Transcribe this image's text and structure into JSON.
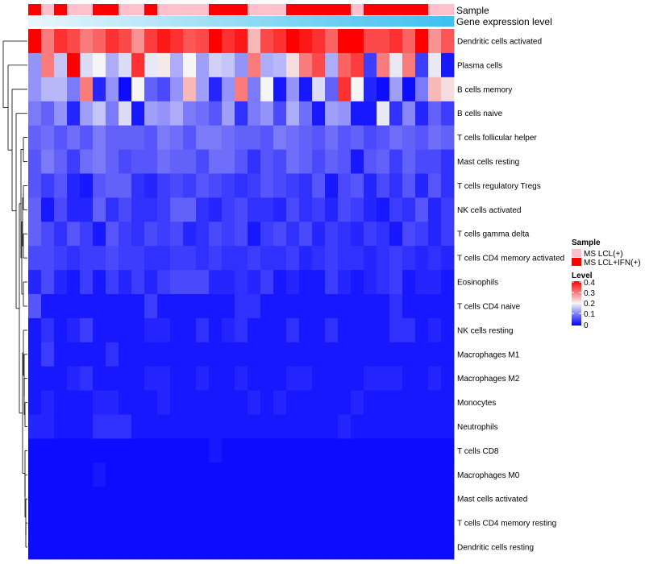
{
  "chart_data": {
    "type": "heatmap",
    "annotation_labels": {
      "sample": "Sample",
      "gene_expression": "Gene expression level"
    },
    "legend_sample": {
      "title": "Sample",
      "entries": [
        {
          "label": "MS LCL(+)",
          "color": "#ffc0cb"
        },
        {
          "label": "MS LCL+IFN(+)",
          "color": "#ff0000"
        }
      ]
    },
    "legend_level": {
      "title": "Level",
      "ticks": [
        "0.4",
        "0.3",
        "0.2",
        "0.1",
        "0"
      ],
      "range": [
        0,
        0.4
      ],
      "colors": {
        "low": "#0000ff",
        "mid": "#f5f5f5",
        "high": "#ff0000"
      }
    },
    "colors": {
      "pink": "#ffc0cb",
      "red": "#ff0000",
      "expr_low": "#e6f6fc",
      "expr_high": "#40c0ee",
      "dendro": "#000000"
    },
    "sample_groups": [
      "red",
      "pink",
      "red",
      "pink",
      "pink",
      "red",
      "red",
      "pink",
      "pink",
      "red",
      "pink",
      "pink",
      "pink",
      "pink",
      "red",
      "red",
      "red",
      "pink",
      "pink",
      "pink",
      "red",
      "red",
      "red",
      "red",
      "red",
      "pink",
      "red",
      "red",
      "red",
      "red",
      "red",
      "pink",
      "pink"
    ],
    "rows": [
      "Dendritic cells activated",
      "Plasma cells",
      "B cells memory",
      "B cells naive",
      "T cells follicular helper",
      "Mast cells resting",
      "T cells regulatory  Tregs",
      "NK cells activated",
      "T cells gamma delta",
      "T cells CD4 memory activated",
      "Eosinophils",
      "T cells CD4 naive",
      "NK cells resting",
      "Macrophages M1",
      "Macrophages M2",
      "Monocytes",
      "Neutrophils",
      "T cells CD8",
      "Macrophages M0",
      "Mast cells activated",
      "T cells CD4 memory resting",
      "Dendritic cells resting"
    ],
    "values": [
      [
        0.4,
        0.3,
        0.36,
        0.34,
        0.3,
        0.32,
        0.36,
        0.34,
        0.28,
        0.35,
        0.38,
        0.36,
        0.33,
        0.34,
        0.4,
        0.36,
        0.38,
        0.25,
        0.34,
        0.36,
        0.4,
        0.38,
        0.36,
        0.32,
        0.4,
        0.4,
        0.34,
        0.34,
        0.36,
        0.32,
        0.4,
        0.28,
        0.33
      ],
      [
        0.12,
        0.3,
        0.16,
        0.4,
        0.18,
        0.2,
        0.14,
        0.18,
        0.36,
        0.19,
        0.21,
        0.14,
        0.2,
        0.13,
        0.17,
        0.16,
        0.12,
        0.3,
        0.14,
        0.15,
        0.22,
        0.3,
        0.34,
        0.14,
        0.32,
        0.35,
        0.05,
        0.3,
        0.19,
        0.3,
        0.05,
        0.19,
        0.02
      ],
      [
        0.12,
        0.15,
        0.15,
        0.1,
        0.3,
        0.03,
        0.12,
        0.01,
        0.2,
        0.08,
        0.06,
        0.12,
        0.25,
        0.13,
        0.03,
        0.12,
        0.3,
        0.1,
        0.2,
        0.02,
        0.12,
        0.02,
        0.18,
        0.08,
        0.36,
        0.2,
        0.03,
        0.01,
        0.13,
        0.01,
        0.1,
        0.25,
        0.22
      ],
      [
        0.1,
        0.08,
        0.12,
        0.03,
        0.13,
        0.16,
        0.1,
        0.18,
        0.02,
        0.13,
        0.12,
        0.14,
        0.1,
        0.09,
        0.07,
        0.13,
        0.04,
        0.1,
        0.12,
        0.06,
        0.14,
        0.09,
        0.02,
        0.13,
        0.12,
        0.02,
        0.02,
        0.19,
        0.04,
        0.11,
        0.03,
        0.08,
        0.05
      ],
      [
        0.08,
        0.09,
        0.07,
        0.09,
        0.07,
        0.1,
        0.08,
        0.08,
        0.08,
        0.07,
        0.1,
        0.09,
        0.07,
        0.1,
        0.1,
        0.09,
        0.08,
        0.08,
        0.07,
        0.1,
        0.09,
        0.08,
        0.07,
        0.09,
        0.07,
        0.08,
        0.06,
        0.07,
        0.09,
        0.08,
        0.07,
        0.09,
        0.08
      ],
      [
        0.07,
        0.1,
        0.08,
        0.05,
        0.09,
        0.1,
        0.08,
        0.06,
        0.07,
        0.07,
        0.09,
        0.08,
        0.08,
        0.06,
        0.09,
        0.09,
        0.07,
        0.04,
        0.07,
        0.06,
        0.09,
        0.08,
        0.06,
        0.08,
        0.07,
        0.02,
        0.07,
        0.08,
        0.05,
        0.08,
        0.06,
        0.06,
        0.04
      ],
      [
        0.07,
        0.05,
        0.07,
        0.03,
        0.02,
        0.07,
        0.08,
        0.08,
        0.04,
        0.03,
        0.05,
        0.06,
        0.05,
        0.07,
        0.06,
        0.05,
        0.04,
        0.05,
        0.07,
        0.06,
        0.05,
        0.04,
        0.07,
        0.02,
        0.06,
        0.07,
        0.03,
        0.06,
        0.04,
        0.07,
        0.03,
        0.07,
        0.04
      ],
      [
        0.08,
        0.02,
        0.06,
        0.03,
        0.03,
        0.08,
        0.04,
        0.06,
        0.04,
        0.04,
        0.05,
        0.08,
        0.08,
        0.04,
        0.03,
        0.05,
        0.06,
        0.04,
        0.04,
        0.03,
        0.06,
        0.04,
        0.05,
        0.03,
        0.06,
        0.05,
        0.03,
        0.02,
        0.05,
        0.04,
        0.07,
        0.03,
        0.05
      ],
      [
        0.08,
        0.06,
        0.04,
        0.07,
        0.05,
        0.02,
        0.07,
        0.05,
        0.04,
        0.06,
        0.05,
        0.06,
        0.03,
        0.04,
        0.06,
        0.05,
        0.06,
        0.02,
        0.05,
        0.06,
        0.04,
        0.06,
        0.03,
        0.05,
        0.04,
        0.03,
        0.05,
        0.04,
        0.02,
        0.06,
        0.05,
        0.03,
        0.05
      ],
      [
        0.06,
        0.06,
        0.05,
        0.04,
        0.05,
        0.05,
        0.06,
        0.05,
        0.05,
        0.04,
        0.04,
        0.05,
        0.05,
        0.04,
        0.05,
        0.04,
        0.04,
        0.05,
        0.04,
        0.04,
        0.05,
        0.03,
        0.04,
        0.05,
        0.04,
        0.04,
        0.03,
        0.04,
        0.05,
        0.04,
        0.03,
        0.04,
        0.03
      ],
      [
        0.03,
        0.06,
        0.03,
        0.02,
        0.05,
        0.02,
        0.05,
        0.03,
        0.05,
        0.03,
        0.05,
        0.06,
        0.06,
        0.06,
        0.03,
        0.03,
        0.04,
        0.03,
        0.05,
        0.02,
        0.03,
        0.02,
        0.02,
        0.05,
        0.03,
        0.02,
        0.03,
        0.04,
        0.05,
        0.02,
        0.03,
        0.03,
        0.02
      ],
      [
        0.07,
        0.02,
        0.02,
        0.02,
        0.02,
        0.02,
        0.02,
        0.02,
        0.02,
        0.05,
        0.02,
        0.02,
        0.02,
        0.02,
        0.02,
        0.02,
        0.04,
        0.04,
        0.02,
        0.02,
        0.02,
        0.02,
        0.02,
        0.02,
        0.02,
        0.02,
        0.02,
        0.02,
        0.04,
        0.02,
        0.02,
        0.02,
        0.02
      ],
      [
        0.02,
        0.04,
        0.02,
        0.03,
        0.05,
        0.02,
        0.02,
        0.02,
        0.02,
        0.03,
        0.03,
        0.02,
        0.02,
        0.04,
        0.02,
        0.03,
        0.04,
        0.02,
        0.02,
        0.02,
        0.04,
        0.02,
        0.02,
        0.04,
        0.02,
        0.02,
        0.02,
        0.02,
        0.04,
        0.04,
        0.02,
        0.03,
        0.02
      ],
      [
        0.02,
        0.05,
        0.02,
        0.02,
        0.02,
        0.02,
        0.04,
        0.02,
        0.02,
        0.02,
        0.02,
        0.02,
        0.02,
        0.02,
        0.02,
        0.02,
        0.02,
        0.02,
        0.02,
        0.02,
        0.02,
        0.02,
        0.02,
        0.02,
        0.02,
        0.02,
        0.02,
        0.02,
        0.02,
        0.02,
        0.02,
        0.02,
        0.02
      ],
      [
        0.02,
        0.02,
        0.02,
        0.03,
        0.04,
        0.02,
        0.02,
        0.02,
        0.02,
        0.03,
        0.03,
        0.02,
        0.02,
        0.03,
        0.02,
        0.02,
        0.03,
        0.02,
        0.02,
        0.02,
        0.03,
        0.03,
        0.02,
        0.02,
        0.02,
        0.02,
        0.03,
        0.03,
        0.03,
        0.02,
        0.02,
        0.03,
        0.02
      ],
      [
        0.02,
        0.03,
        0.02,
        0.02,
        0.02,
        0.03,
        0.03,
        0.02,
        0.02,
        0.02,
        0.03,
        0.02,
        0.02,
        0.02,
        0.02,
        0.02,
        0.02,
        0.03,
        0.02,
        0.03,
        0.02,
        0.02,
        0.02,
        0.02,
        0.02,
        0.03,
        0.02,
        0.02,
        0.02,
        0.02,
        0.02,
        0.02,
        0.02
      ],
      [
        0.03,
        0.03,
        0.02,
        0.02,
        0.02,
        0.04,
        0.04,
        0.04,
        0.02,
        0.02,
        0.02,
        0.02,
        0.02,
        0.02,
        0.02,
        0.02,
        0.02,
        0.02,
        0.02,
        0.02,
        0.02,
        0.02,
        0.02,
        0.02,
        0.03,
        0.02,
        0.02,
        0.02,
        0.02,
        0.02,
        0.02,
        0.02,
        0.02
      ],
      [
        0.01,
        0.01,
        0.01,
        0.01,
        0.01,
        0.01,
        0.01,
        0.01,
        0.01,
        0.01,
        0.01,
        0.01,
        0.01,
        0.01,
        0.02,
        0.01,
        0.01,
        0.01,
        0.01,
        0.01,
        0.01,
        0.01,
        0.01,
        0.01,
        0.01,
        0.01,
        0.01,
        0.01,
        0.01,
        0.01,
        0.01,
        0.01,
        0.01
      ],
      [
        0.01,
        0.01,
        0.01,
        0.01,
        0.01,
        0.02,
        0.01,
        0.01,
        0.01,
        0.01,
        0.01,
        0.01,
        0.01,
        0.01,
        0.01,
        0.01,
        0.01,
        0.01,
        0.01,
        0.01,
        0.01,
        0.01,
        0.01,
        0.01,
        0.01,
        0.01,
        0.01,
        0.01,
        0.01,
        0.01,
        0.01,
        0.01,
        0.01
      ],
      [
        0.01,
        0.01,
        0.01,
        0.01,
        0.01,
        0.01,
        0.01,
        0.01,
        0.01,
        0.01,
        0.01,
        0.01,
        0.01,
        0.01,
        0.01,
        0.01,
        0.01,
        0.01,
        0.01,
        0.01,
        0.01,
        0.01,
        0.01,
        0.01,
        0.01,
        0.01,
        0.01,
        0.01,
        0.01,
        0.01,
        0.01,
        0.01,
        0.01
      ],
      [
        0.01,
        0.01,
        0.01,
        0.01,
        0.01,
        0.01,
        0.01,
        0.01,
        0.01,
        0.01,
        0.01,
        0.01,
        0.01,
        0.01,
        0.01,
        0.01,
        0.01,
        0.01,
        0.01,
        0.01,
        0.01,
        0.01,
        0.01,
        0.01,
        0.01,
        0.01,
        0.01,
        0.01,
        0.01,
        0.01,
        0.01,
        0.01,
        0.01
      ],
      [
        0.01,
        0.01,
        0.01,
        0.01,
        0.01,
        0.01,
        0.01,
        0.01,
        0.01,
        0.01,
        0.01,
        0.01,
        0.01,
        0.01,
        0.01,
        0.01,
        0.01,
        0.01,
        0.01,
        0.01,
        0.01,
        0.01,
        0.01,
        0.01,
        0.01,
        0.01,
        0.01,
        0.01,
        0.01,
        0.01,
        0.01,
        0.01,
        0.01
      ]
    ]
  }
}
